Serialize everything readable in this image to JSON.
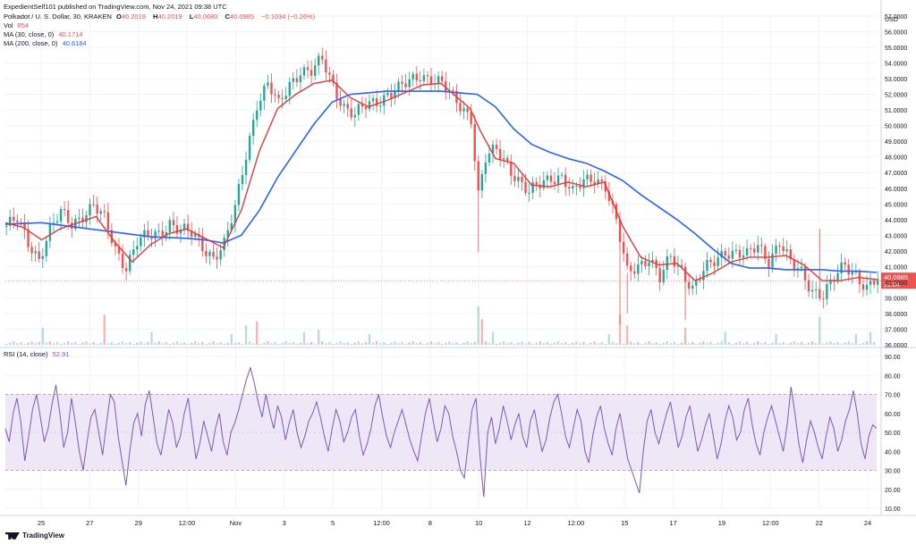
{
  "header": {
    "publisher": "ExpedientSelf101 published on TradingView.com, Nov 24, 2021 09:38 UTC",
    "symbol": "Polkadot / U. S. Dollar, 30, KRAKEN",
    "o_label": "O",
    "o": "40.2019",
    "h_label": "H",
    "h": "40.2019",
    "l_label": "L",
    "l": "40.0680",
    "c_label": "C",
    "c": "40.0985",
    "change": "−0.1034 (−0.26%)",
    "vol_label": "Vol",
    "vol": "854",
    "ma30_label": "MA (30, close, 0)",
    "ma30": "40.1714",
    "ma200_label": "MA (200, close, 0)",
    "ma200": "40.6184",
    "rsi_label": "RSI (14, close)",
    "rsi": "52.91"
  },
  "footer": {
    "brand": "TradingView"
  },
  "colors": {
    "up": "#26a69a",
    "down": "#ef5350",
    "ma30": "#e53935",
    "ma200": "#2962ff",
    "rsi": "#7e57c2",
    "rsi_band": "#ede7f6"
  },
  "chart_data": [
    {
      "type": "candlestick",
      "title": "Polkadot / U. S. Dollar, 30, KRAKEN",
      "yunit": "USD",
      "ylim": [
        36.0,
        57.0
      ],
      "ticks": [
        "57.0000",
        "56.0000",
        "55.0000",
        "54.0000",
        "53.0000",
        "52.0000",
        "51.0000",
        "50.0000",
        "49.0000",
        "48.0000",
        "47.0000",
        "46.0000",
        "45.0000",
        "44.0000",
        "43.0000",
        "42.0000",
        "41.0000",
        "40.0000",
        "39.0000",
        "38.0000",
        "37.0000",
        "36.0000"
      ],
      "x_tick_labels": [
        "25",
        "27",
        "29",
        "12:00",
        "Nov",
        "3",
        "5",
        "12:00",
        "8",
        "10",
        "12",
        "12:00",
        "15",
        "17",
        "19",
        "12:00",
        "22",
        "24"
      ],
      "last_price": "40.0985",
      "countdown": "21:04",
      "close_path": [
        [
          0,
          43.6
        ],
        [
          3,
          43.9
        ],
        [
          6,
          42.5
        ],
        [
          9,
          41.6
        ],
        [
          12,
          43.4
        ],
        [
          15,
          44.3
        ],
        [
          18,
          43.7
        ],
        [
          21,
          44.4
        ],
        [
          24,
          44.9
        ],
        [
          27,
          43.9
        ],
        [
          30,
          42.1
        ],
        [
          33,
          41.1
        ],
        [
          36,
          42.6
        ],
        [
          39,
          42.8
        ],
        [
          42,
          43.1
        ],
        [
          45,
          43.9
        ],
        [
          48,
          43.3
        ],
        [
          51,
          43.0
        ],
        [
          54,
          42.3
        ],
        [
          57,
          41.7
        ],
        [
          60,
          42.4
        ],
        [
          63,
          44.6
        ],
        [
          66,
          48.2
        ],
        [
          69,
          51.5
        ],
        [
          72,
          52.6
        ],
        [
          75,
          51.2
        ],
        [
          78,
          52.7
        ],
        [
          81,
          53.6
        ],
        [
          84,
          53.4
        ],
        [
          87,
          54.1
        ],
        [
          90,
          52.6
        ],
        [
          93,
          51.3
        ],
        [
          96,
          50.6
        ],
        [
          99,
          51.2
        ],
        [
          102,
          51.6
        ],
        [
          105,
          52.1
        ],
        [
          108,
          52.3
        ],
        [
          111,
          52.7
        ],
        [
          114,
          53.3
        ],
        [
          117,
          53.1
        ],
        [
          120,
          52.6
        ],
        [
          123,
          51.7
        ],
        [
          126,
          51.1
        ],
        [
          128,
          50.6
        ],
        [
          130,
          45.6
        ],
        [
          132,
          47.8
        ],
        [
          135,
          48.4
        ],
        [
          138,
          47.6
        ],
        [
          141,
          46.6
        ],
        [
          144,
          45.6
        ],
        [
          147,
          46.2
        ],
        [
          150,
          46.8
        ],
        [
          153,
          46.8
        ],
        [
          156,
          45.6
        ],
        [
          159,
          46.4
        ],
        [
          162,
          46.8
        ],
        [
          165,
          46.2
        ],
        [
          168,
          43.7
        ],
        [
          171,
          40.6
        ],
        [
          174,
          41.2
        ],
        [
          177,
          41.6
        ],
        [
          180,
          40.1
        ],
        [
          183,
          41.6
        ],
        [
          186,
          40.9
        ],
        [
          189,
          39.6
        ],
        [
          192,
          40.6
        ],
        [
          195,
          41.3
        ],
        [
          198,
          42.1
        ],
        [
          201,
          41.9
        ],
        [
          204,
          41.6
        ],
        [
          207,
          42.3
        ],
        [
          210,
          41.5
        ],
        [
          213,
          42.6
        ],
        [
          216,
          41.1
        ],
        [
          219,
          40.6
        ],
        [
          222,
          39.6
        ],
        [
          225,
          39.2
        ],
        [
          228,
          40.1
        ],
        [
          231,
          41.1
        ],
        [
          234,
          40.6
        ],
        [
          237,
          39.6
        ],
        [
          240,
          40.1
        ]
      ],
      "ma30_path": [
        [
          0,
          43.8
        ],
        [
          5,
          43.5
        ],
        [
          10,
          42.7
        ],
        [
          15,
          43.4
        ],
        [
          20,
          43.8
        ],
        [
          25,
          44.2
        ],
        [
          30,
          42.6
        ],
        [
          35,
          41.3
        ],
        [
          40,
          42.4
        ],
        [
          45,
          43.1
        ],
        [
          50,
          43.4
        ],
        [
          55,
          42.8
        ],
        [
          60,
          42.2
        ],
        [
          65,
          44.6
        ],
        [
          70,
          48.4
        ],
        [
          75,
          51.1
        ],
        [
          80,
          52.0
        ],
        [
          85,
          52.7
        ],
        [
          90,
          52.9
        ],
        [
          95,
          51.8
        ],
        [
          100,
          51.2
        ],
        [
          105,
          51.6
        ],
        [
          110,
          52.1
        ],
        [
          115,
          52.6
        ],
        [
          120,
          52.7
        ],
        [
          125,
          51.7
        ],
        [
          128,
          51.1
        ],
        [
          131,
          49.6
        ],
        [
          135,
          47.9
        ],
        [
          140,
          47.6
        ],
        [
          145,
          46.2
        ],
        [
          150,
          46.1
        ],
        [
          155,
          46.4
        ],
        [
          160,
          46.1
        ],
        [
          165,
          46.4
        ],
        [
          170,
          43.6
        ],
        [
          175,
          41.6
        ],
        [
          180,
          41.1
        ],
        [
          185,
          41.2
        ],
        [
          190,
          40.1
        ],
        [
          195,
          40.6
        ],
        [
          200,
          41.3
        ],
        [
          205,
          41.6
        ],
        [
          210,
          41.6
        ],
        [
          215,
          41.7
        ],
        [
          220,
          41.1
        ],
        [
          225,
          40.1
        ],
        [
          230,
          40.1
        ],
        [
          235,
          40.3
        ],
        [
          240,
          40.17
        ]
      ],
      "ma200_path": [
        [
          0,
          43.7
        ],
        [
          10,
          43.8
        ],
        [
          20,
          43.5
        ],
        [
          30,
          43.2
        ],
        [
          40,
          42.9
        ],
        [
          50,
          42.8
        ],
        [
          55,
          42.7
        ],
        [
          60,
          42.5
        ],
        [
          65,
          43.0
        ],
        [
          70,
          44.6
        ],
        [
          75,
          46.7
        ],
        [
          80,
          48.4
        ],
        [
          85,
          50.1
        ],
        [
          90,
          51.5
        ],
        [
          95,
          52.0
        ],
        [
          100,
          52.1
        ],
        [
          105,
          52.2
        ],
        [
          110,
          52.2
        ],
        [
          115,
          52.2
        ],
        [
          120,
          52.2
        ],
        [
          125,
          52.1
        ],
        [
          130,
          52.0
        ],
        [
          135,
          51.2
        ],
        [
          140,
          49.8
        ],
        [
          145,
          48.8
        ],
        [
          150,
          48.3
        ],
        [
          155,
          47.9
        ],
        [
          160,
          47.6
        ],
        [
          165,
          47.1
        ],
        [
          170,
          46.5
        ],
        [
          175,
          45.6
        ],
        [
          180,
          44.8
        ],
        [
          185,
          44.0
        ],
        [
          190,
          43.1
        ],
        [
          195,
          42.1
        ],
        [
          200,
          41.2
        ],
        [
          205,
          40.9
        ],
        [
          210,
          40.9
        ],
        [
          215,
          40.8
        ],
        [
          220,
          40.8
        ],
        [
          225,
          40.8
        ],
        [
          230,
          40.7
        ],
        [
          235,
          40.7
        ],
        [
          240,
          40.62
        ]
      ],
      "volume_spikes": [
        [
          10,
          8
        ],
        [
          27,
          14
        ],
        [
          40,
          6
        ],
        [
          62,
          5
        ],
        [
          66,
          9
        ],
        [
          69,
          11
        ],
        [
          82,
          6
        ],
        [
          86,
          7
        ],
        [
          100,
          5
        ],
        [
          130,
          18
        ],
        [
          131,
          12
        ],
        [
          134,
          6
        ],
        [
          166,
          5
        ],
        [
          169,
          14
        ],
        [
          171,
          9
        ],
        [
          187,
          8
        ],
        [
          198,
          6
        ],
        [
          212,
          5
        ],
        [
          224,
          13
        ],
        [
          234,
          5
        ],
        [
          238,
          6
        ]
      ]
    },
    {
      "type": "line",
      "title": "RSI (14, close)",
      "ylim": [
        10,
        90
      ],
      "ticks": [
        "90.00",
        "80.00",
        "70.00",
        "60.00",
        "50.00",
        "40.00",
        "30.00",
        "20.00",
        "10.00"
      ],
      "band": [
        30,
        70
      ],
      "midline": 50,
      "last_value": "52.91",
      "values": [
        52,
        45,
        60,
        68,
        55,
        35,
        48,
        62,
        70,
        58,
        45,
        52,
        65,
        75,
        60,
        42,
        50,
        68,
        55,
        40,
        30,
        45,
        58,
        62,
        50,
        38,
        55,
        70,
        66,
        48,
        35,
        22,
        40,
        55,
        60,
        48,
        65,
        72,
        58,
        44,
        38,
        50,
        62,
        55,
        42,
        48,
        60,
        68,
        52,
        36,
        44,
        56,
        48,
        40,
        52,
        60,
        45,
        38,
        50,
        55,
        62,
        70,
        78,
        84,
        76,
        66,
        58,
        70,
        60,
        52,
        64,
        58,
        46,
        55,
        62,
        50,
        42,
        48,
        56,
        60,
        66,
        58,
        48,
        40,
        52,
        62,
        56,
        45,
        50,
        58,
        62,
        48,
        38,
        44,
        52,
        64,
        70,
        58,
        48,
        42,
        50,
        56,
        62,
        54,
        46,
        40,
        35,
        48,
        60,
        68,
        56,
        45,
        52,
        64,
        60,
        48,
        40,
        30,
        26,
        44,
        62,
        68,
        38,
        16,
        50,
        58,
        44,
        52,
        64,
        56,
        46,
        54,
        60,
        48,
        42,
        56,
        62,
        50,
        40,
        46,
        58,
        66,
        70,
        60,
        48,
        42,
        52,
        62,
        56,
        40,
        34,
        48,
        58,
        64,
        52,
        44,
        38,
        52,
        60,
        48,
        36,
        30,
        24,
        18,
        40,
        56,
        62,
        50,
        44,
        52,
        60,
        66,
        54,
        42,
        48,
        58,
        64,
        52,
        40,
        46,
        54,
        60,
        48,
        36,
        44,
        56,
        64,
        58,
        46,
        50,
        62,
        68,
        54,
        44,
        38,
        50,
        58,
        64,
        56,
        48,
        40,
        54,
        74,
        60,
        44,
        34,
        46,
        56,
        50,
        42,
        36,
        48,
        58,
        52,
        40,
        46,
        56,
        62,
        72,
        60,
        44,
        36,
        48,
        54,
        52
      ]
    }
  ]
}
